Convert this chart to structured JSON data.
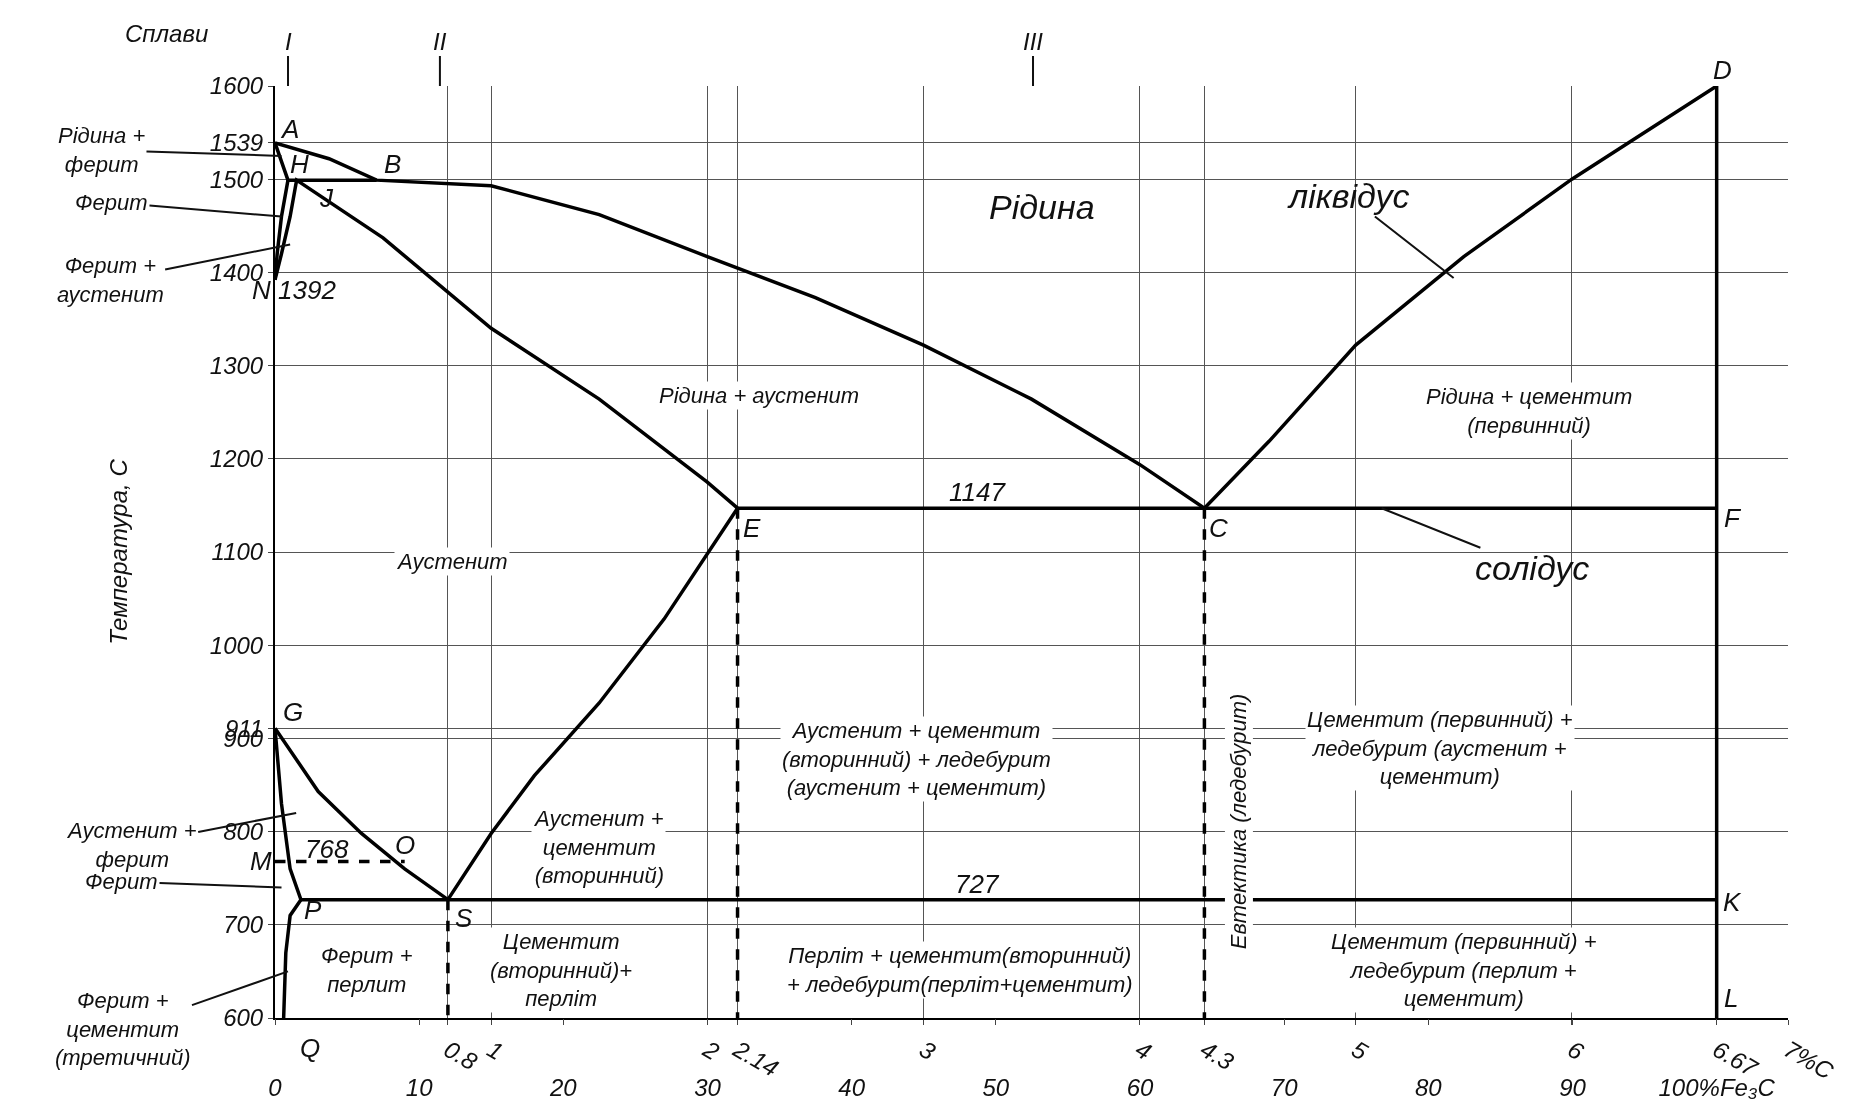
{
  "chart_data": {
    "type": "line",
    "ylabel": "Температура, С",
    "xlim": [
      0,
      7
    ],
    "x2lim": [
      0,
      104.95
    ],
    "ylim": [
      600,
      1600
    ],
    "grid": true,
    "xticks": [
      0.8,
      1,
      2,
      2.14,
      3,
      4,
      4.3,
      5,
      6,
      6.67,
      {
        "value": 7,
        "label": "7%C"
      }
    ],
    "x2ticks": [
      0,
      10,
      20,
      30,
      40,
      50,
      60,
      70,
      80,
      90,
      {
        "value": 100,
        "label": "100%Fe₃C"
      }
    ],
    "yticks": [
      600,
      700,
      800,
      900,
      911,
      1000,
      1100,
      1200,
      1300,
      1400,
      1500,
      1539,
      1600
    ],
    "annotations": [
      "Сплави",
      "I",
      "II",
      "III",
      {
        "text": "A",
        "x": 0,
        "y": 1539
      },
      {
        "text": "H",
        "x": 0.06,
        "y": 1499
      },
      {
        "text": "B",
        "x": 0.47,
        "y": 1499
      },
      {
        "text": "J",
        "x": 0.1,
        "y": 1499
      },
      {
        "text": "N",
        "x": 0,
        "y": 1392
      },
      {
        "text": "1392",
        "x": 0,
        "y": 1392
      },
      {
        "text": "E",
        "x": 2.14,
        "y": 1147
      },
      {
        "text": "C",
        "x": 4.3,
        "y": 1147
      },
      {
        "text": "F",
        "x": 6.67,
        "y": 1147
      },
      {
        "text": "D",
        "x": 6.67,
        "y": 1600
      },
      {
        "text": "G",
        "x": 0,
        "y": 911
      },
      {
        "text": "O",
        "x": 0.6,
        "y": 768
      },
      {
        "text": "S",
        "x": 0.8,
        "y": 727
      },
      {
        "text": "P",
        "x": 0.12,
        "y": 727
      },
      {
        "text": "K",
        "x": 6.67,
        "y": 727
      },
      {
        "text": "L",
        "x": 6.67,
        "y": 600
      },
      {
        "text": "M",
        "x": 0,
        "y": 768
      },
      {
        "text": "Q",
        "x": 0.04,
        "y": 600
      },
      {
        "text": "768",
        "x": 0.24,
        "y": 768
      },
      {
        "text": "1147",
        "x": 3.25,
        "y": 1147
      },
      {
        "text": "727",
        "x": 3.25,
        "y": 727
      },
      "Рідина",
      "ліквідус",
      {
        "text": "солідус",
        "x": 5.12,
        "y": 1147
      },
      "Рідина + аустенит",
      "Рідина + цементит\n(первинний)",
      "Аустенит",
      "Аустенит + цементит\n(вторинний) + ледебурит\n(аустенит + цементит)",
      "Цементит (первинний) +\nледебурит (аустенит +\nцементит)",
      "Евтектика (ледебурит)",
      "Аустенит +\nцементит\n(вторинний)",
      "Ферит +\nперлит",
      "Цементит\n(вторинний)+\nперліт",
      "Перліт + цементит(вторинний)\n+ ледебурит(перліт+цементит)",
      "Цементит (первинний) +\nледебурит (перлит +\nцементит)",
      {
        "text": "Рідина +\nферит",
        "x": 0.03,
        "y": 1525
      },
      {
        "text": "Ферит",
        "x": 0.03,
        "y": 1460
      },
      {
        "text": "Ферит +\nаустенит",
        "x": 0.07,
        "y": 1430
      },
      "Аустенит +\nферит",
      "Ферит",
      {
        "text": "Ферит +\nцементит\n(третичний)",
        "x": 0.06,
        "y": 650
      }
    ],
    "series": [
      {
        "x": [
          0,
          0.25,
          0.47,
          1,
          1.5,
          2,
          2.5,
          3,
          3.5,
          4,
          4.3,
          4.6,
          5,
          5.5,
          6,
          6.67
        ],
        "values": [
          1539,
          1522,
          1499,
          1493,
          1462,
          1417,
          1373,
          1322,
          1264,
          1194,
          1147,
          1219,
          1322,
          1417,
          1500,
          1600
        ],
        "color": "#000000",
        "line_style": "solid"
      },
      {
        "x": [
          0,
          0.06,
          0.47
        ],
        "values": [
          1539,
          1499,
          1499
        ],
        "color": "#000000",
        "line_style": "solid"
      },
      {
        "x": [
          0.06,
          0.03,
          0.01,
          0
        ],
        "values": [
          1499,
          1460,
          1420,
          1392
        ],
        "color": "#000000",
        "line_style": "solid"
      },
      {
        "x": [
          0,
          0.03,
          0.07,
          0.1,
          0.5,
          1,
          1.5,
          2,
          2.14
        ],
        "values": [
          1392,
          1420,
          1460,
          1499,
          1437,
          1340,
          1264,
          1175,
          1147
        ],
        "color": "#000000",
        "line_style": "solid"
      },
      {
        "x": [
          2.14,
          6.67
        ],
        "values": [
          1147,
          1147
        ],
        "color": "#000000",
        "line_style": "solid"
      },
      {
        "x": [
          0,
          0.2,
          0.4,
          0.6,
          0.8,
          1,
          1.2,
          1.5,
          1.8,
          2.14
        ],
        "values": [
          911,
          843,
          798,
          760,
          727,
          798,
          860,
          938,
          1028,
          1147
        ],
        "color": "#000000",
        "line_style": "solid"
      },
      {
        "x": [
          0,
          0.03,
          0.07,
          0.12,
          0.07,
          0.05,
          0.04
        ],
        "values": [
          911,
          830,
          760,
          727,
          710,
          670,
          600
        ],
        "color": "#000000",
        "line_style": "solid"
      },
      {
        "x": [
          0.12,
          6.67
        ],
        "values": [
          727,
          727
        ],
        "color": "#000000",
        "line_style": "solid"
      },
      {
        "x": [
          6.67,
          6.67
        ],
        "values": [
          1600,
          600
        ],
        "color": "#000000",
        "line_style": "solid"
      },
      {
        "x": [
          2.14,
          2.14
        ],
        "values": [
          1147,
          600
        ],
        "color": "#000000",
        "line_style": "dashed"
      },
      {
        "x": [
          4.3,
          4.3
        ],
        "values": [
          1147,
          600
        ],
        "color": "#000000",
        "line_style": "dashed"
      },
      {
        "x": [
          0.8,
          0.8
        ],
        "values": [
          727,
          600
        ],
        "color": "#000000",
        "line_style": "dashed"
      },
      {
        "x": [
          0,
          0.6
        ],
        "values": [
          768,
          768
        ],
        "color": "#000000",
        "line_style": "dashed"
      }
    ]
  }
}
